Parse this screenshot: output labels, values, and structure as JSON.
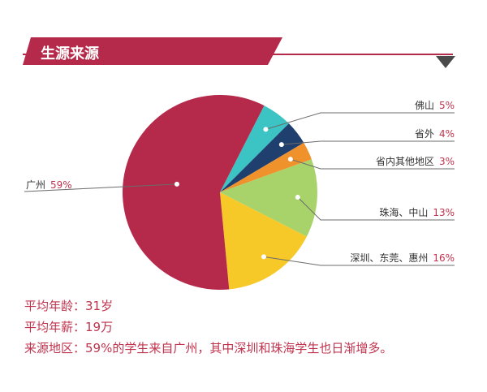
{
  "header": {
    "title": "生源来源",
    "color": "#b52a4a"
  },
  "chart_data": {
    "type": "pie",
    "title": "生源来源",
    "slices": [
      {
        "label": "佛山",
        "pct_text": "5%",
        "value": 5,
        "color": "#3cc4c4"
      },
      {
        "label": "省外",
        "pct_text": "4%",
        "value": 4,
        "color": "#1f3f6e"
      },
      {
        "label": "省内其他地区",
        "pct_text": "3%",
        "value": 3,
        "color": "#f0922b"
      },
      {
        "label": "珠海、中山",
        "pct_text": "13%",
        "value": 13,
        "color": "#a8d36a"
      },
      {
        "label": "深圳、东莞、惠州",
        "pct_text": "16%",
        "value": 16,
        "color": "#f7c928"
      },
      {
        "label": "广州",
        "pct_text": "59%",
        "value": 59,
        "color": "#b52a4a"
      }
    ]
  },
  "stats": {
    "age": "平均年龄：31岁",
    "salary": "平均年薪：19万",
    "origin": "来源地区：59%的学生来自广州，其中深圳和珠海学生也日渐增多。"
  }
}
